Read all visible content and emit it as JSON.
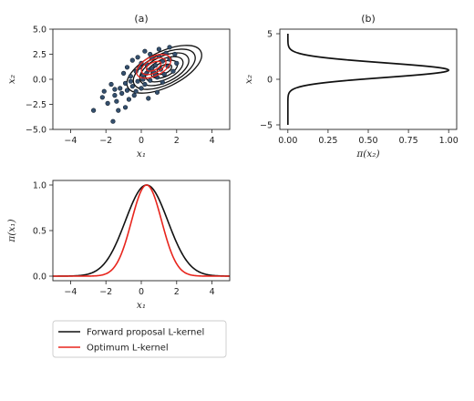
{
  "chart_data": [
    {
      "panel_title": "(a)",
      "type": "scatter",
      "xlabel": "x₁",
      "ylabel": "x₂",
      "xlim": [
        -5,
        5
      ],
      "ylim": [
        -5,
        5
      ],
      "xticks": [
        "−4",
        "−2",
        "0",
        "2",
        "4"
      ],
      "yticks": [
        "5.0",
        "2.5",
        "0.0",
        "−2.5",
        "−5.0"
      ],
      "contours": {
        "black": {
          "center": [
            1.3,
            1.0
          ],
          "semi_axes": [
            [
              2.3,
              1.1
            ],
            [
              1.9,
              0.95
            ],
            [
              1.5,
              0.8
            ],
            [
              1.15,
              0.62
            ],
            [
              0.8,
              0.45
            ],
            [
              0.45,
              0.26
            ]
          ],
          "angle_deg": 26
        },
        "red": {
          "center": [
            0.7,
            1.3
          ],
          "semi_axes": [
            [
              1.05,
              0.6
            ],
            [
              0.75,
              0.42
            ],
            [
              0.45,
              0.24
            ]
          ],
          "angle_deg": 26
        }
      },
      "points": [
        [
          -2.7,
          -3.1
        ],
        [
          -1.6,
          -4.2
        ],
        [
          -2.2,
          -1.8
        ],
        [
          -1.9,
          -2.4
        ],
        [
          -1.5,
          -1.6
        ],
        [
          -1.4,
          -2.2
        ],
        [
          -1.2,
          -0.9
        ],
        [
          -1.1,
          -1.4
        ],
        [
          -0.9,
          -0.4
        ],
        [
          -0.8,
          -1.1
        ],
        [
          -0.7,
          -2.0
        ],
        [
          -0.6,
          0.3
        ],
        [
          -0.5,
          -0.7
        ],
        [
          -0.4,
          -1.6
        ],
        [
          -0.3,
          0.8
        ],
        [
          -0.2,
          -0.2
        ],
        [
          -0.1,
          1.2
        ],
        [
          0.0,
          -0.9
        ],
        [
          0.1,
          0.4
        ],
        [
          0.2,
          -0.5
        ],
        [
          0.3,
          1.5
        ],
        [
          0.4,
          0.9
        ],
        [
          0.5,
          -0.1
        ],
        [
          0.6,
          2.1
        ],
        [
          0.7,
          0.7
        ],
        [
          0.8,
          1.4
        ],
        [
          0.9,
          0.2
        ],
        [
          1.0,
          2.3
        ],
        [
          1.1,
          1.0
        ],
        [
          1.2,
          1.8
        ],
        [
          1.3,
          0.5
        ],
        [
          1.4,
          2.6
        ],
        [
          1.5,
          1.3
        ],
        [
          1.6,
          2.0
        ],
        [
          1.8,
          0.8
        ],
        [
          1.9,
          2.5
        ],
        [
          2.0,
          1.6
        ],
        [
          0.2,
          2.8
        ],
        [
          -0.5,
          1.9
        ],
        [
          0.9,
          -1.3
        ],
        [
          -1.0,
          0.6
        ],
        [
          1.6,
          3.2
        ],
        [
          -0.9,
          -2.8
        ],
        [
          0.4,
          -1.9
        ],
        [
          -1.7,
          -0.5
        ],
        [
          -0.2,
          2.2
        ],
        [
          1.2,
          -0.3
        ],
        [
          -1.3,
          -3.1
        ],
        [
          0.6,
          1.1
        ],
        [
          0.1,
          0.0
        ],
        [
          -0.6,
          -0.2
        ],
        [
          0.3,
          0.6
        ],
        [
          -0.3,
          -1.2
        ],
        [
          0.8,
          0.4
        ],
        [
          -1.5,
          -1.0
        ],
        [
          0.0,
          1.6
        ],
        [
          1.0,
          3.0
        ],
        [
          -0.8,
          1.2
        ],
        [
          0.5,
          2.5
        ],
        [
          -2.1,
          -1.2
        ]
      ]
    },
    {
      "panel_title": "(b)",
      "type": "line",
      "xlabel": "π(x₂)",
      "ylabel": "x₂",
      "xlim": [
        -0.05,
        1.05
      ],
      "ylim": [
        -5.5,
        5.5
      ],
      "xticks": [
        "0.00",
        "0.25",
        "0.50",
        "0.75",
        "1.00"
      ],
      "yticks": [
        "5",
        "0",
        "−5"
      ],
      "curve": {
        "peak": 1.0,
        "mu": 1.0,
        "sigma": 0.8
      }
    },
    {
      "panel_title": "",
      "type": "line",
      "xlabel": "x₁",
      "ylabel": "π(x₁)",
      "xlim": [
        -5,
        5
      ],
      "ylim": [
        -0.05,
        1.05
      ],
      "xticks": [
        "−4",
        "−2",
        "0",
        "2",
        "4"
      ],
      "yticks": [
        "1.0",
        "0.5",
        "0.0"
      ],
      "series": [
        {
          "name": "Forward proposal L-kernel",
          "color": "#111111",
          "mu": 0.3,
          "sigma": 1.2,
          "peak": 1.0
        },
        {
          "name": "Optimum L-kernel",
          "color": "#e8251d",
          "mu": 0.3,
          "sigma": 0.85,
          "peak": 1.0
        }
      ]
    }
  ],
  "legend": {
    "placement": "below",
    "entries": [
      {
        "label": "Forward proposal L-kernel",
        "color": "#111111"
      },
      {
        "label": "Optimum L-kernel",
        "color": "#e8251d"
      }
    ]
  },
  "colors": {
    "dot_fill": "#35506e",
    "dot_edge": "#0f1c2a",
    "contour_black": "#111111",
    "contour_red": "#e8251d"
  }
}
